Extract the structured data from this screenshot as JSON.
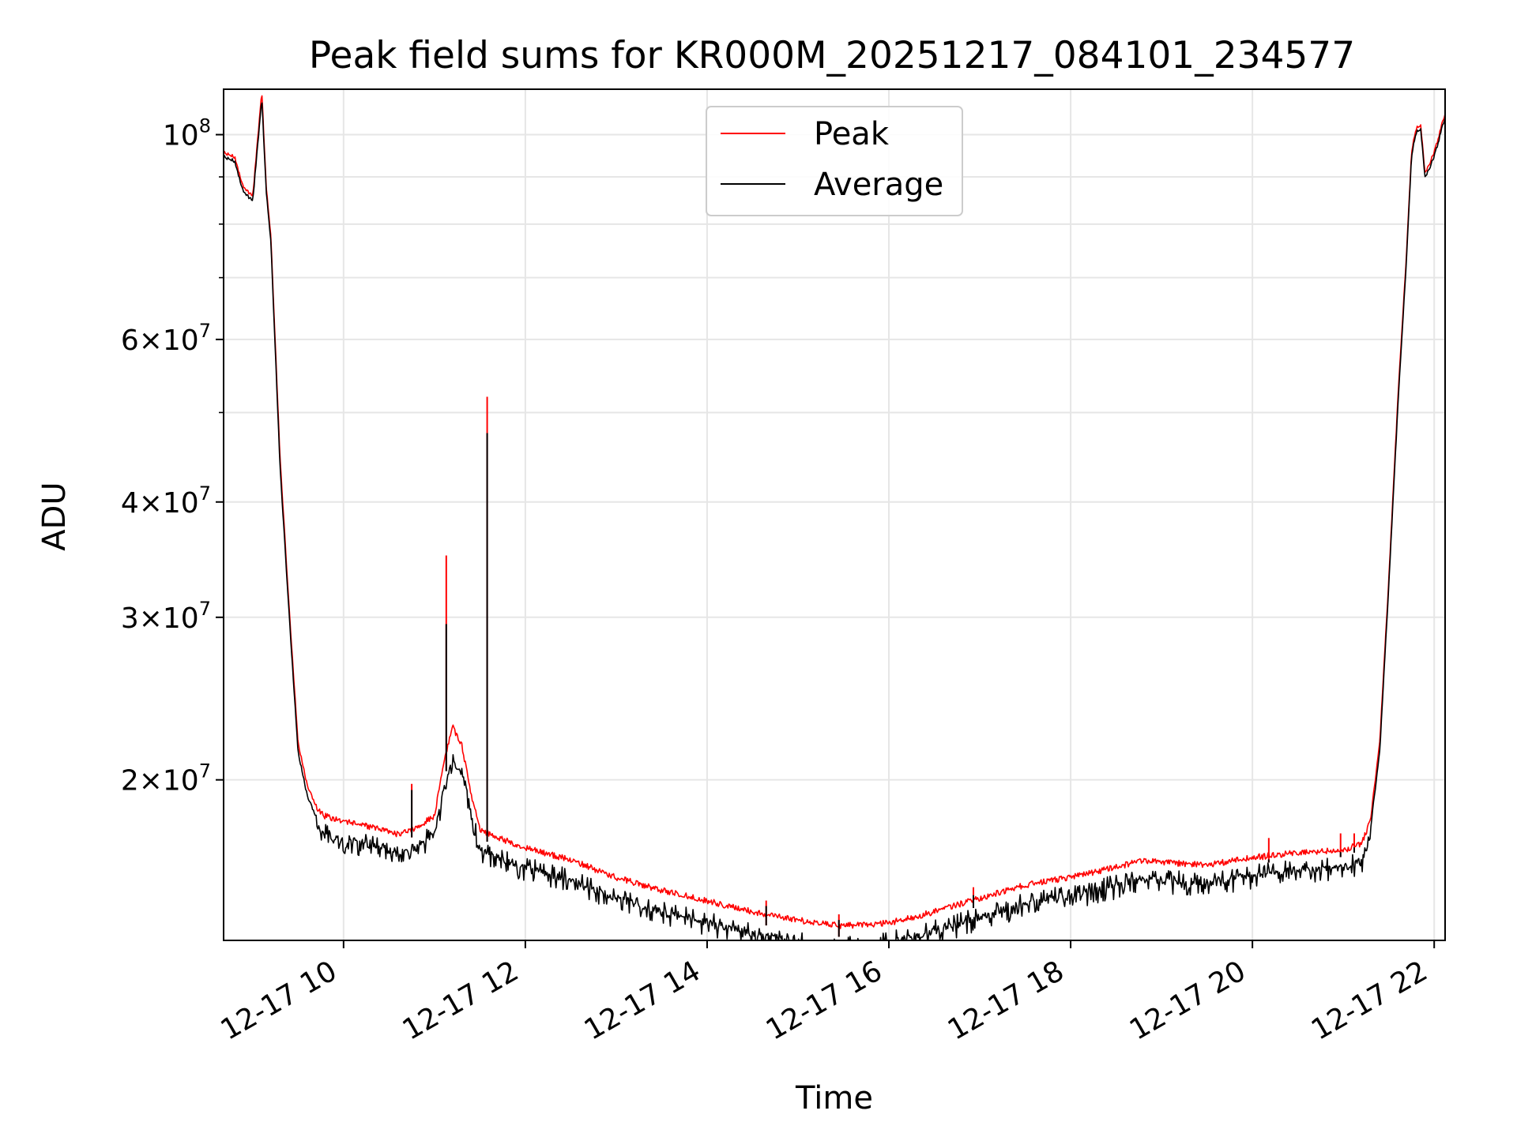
{
  "colors": {
    "peak": "#ff0000",
    "average": "#000000",
    "grid": "#e6e6e6",
    "axes": "#000000",
    "background": "#ffffff"
  },
  "chart_data": {
    "type": "line",
    "title": "Peak field sums for KR000M_20251217_084101_234577",
    "xlabel": "Time",
    "ylabel": "ADU",
    "yscale": "log",
    "grid": true,
    "legend_position": "upper center",
    "xlim": [
      8.68,
      22.12
    ],
    "ylim": [
      13400000,
      112000000
    ],
    "x_unit": "hours on 2025-12-17",
    "x_ticks": [
      {
        "value": 10,
        "label": "12-17 10"
      },
      {
        "value": 12,
        "label": "12-17 12"
      },
      {
        "value": 14,
        "label": "12-17 14"
      },
      {
        "value": 16,
        "label": "12-17 16"
      },
      {
        "value": 18,
        "label": "12-17 18"
      },
      {
        "value": 20,
        "label": "12-17 20"
      },
      {
        "value": 22,
        "label": "12-17 22"
      }
    ],
    "y_ticks": [
      {
        "value": 100000000,
        "mantissa": "",
        "base": "10",
        "exponent": "8"
      },
      {
        "value": 60000000,
        "mantissa": "6×",
        "base": "10",
        "exponent": "7"
      },
      {
        "value": 40000000,
        "mantissa": "4×",
        "base": "10",
        "exponent": "7"
      },
      {
        "value": 30000000,
        "mantissa": "3×",
        "base": "10",
        "exponent": "7"
      },
      {
        "value": 20000000,
        "mantissa": "2×",
        "base": "10",
        "exponent": "7"
      }
    ],
    "y_minor_ticks": [
      90000000,
      80000000,
      70000000,
      50000000
    ],
    "legend": [
      {
        "name": "Peak",
        "color": "#ff0000"
      },
      {
        "name": "Average",
        "color": "#000000"
      }
    ],
    "series": [
      {
        "name": "Peak",
        "color": "#ff0000",
        "x": [
          8.68,
          8.8,
          8.9,
          9.0,
          9.1,
          9.15,
          9.2,
          9.3,
          9.4,
          9.5,
          9.6,
          9.7,
          9.8,
          10.0,
          10.3,
          10.6,
          10.8,
          11.0,
          11.1,
          11.2,
          11.3,
          11.4,
          11.5,
          11.6,
          11.8,
          12.0,
          12.5,
          13.0,
          13.5,
          14.0,
          14.5,
          15.0,
          15.5,
          16.0,
          16.5,
          17.0,
          17.5,
          18.0,
          18.5,
          18.8,
          19.0,
          19.5,
          20.0,
          20.5,
          21.0,
          21.2,
          21.3,
          21.4,
          21.5,
          21.6,
          21.7,
          21.75,
          21.8,
          21.85,
          21.9,
          22.0,
          22.12
        ],
        "y": [
          96000000,
          95000000,
          88000000,
          86000000,
          112000000,
          88000000,
          78000000,
          45000000,
          31000000,
          22000000,
          19800000,
          18800000,
          18400000,
          18200000,
          17900000,
          17600000,
          17900000,
          18400000,
          21000000,
          23000000,
          22000000,
          19500000,
          17800000,
          17600000,
          17300000,
          17000000,
          16500000,
          15800000,
          15300000,
          14900000,
          14500000,
          14200000,
          14000000,
          14100000,
          14500000,
          15000000,
          15500000,
          15800000,
          16200000,
          16500000,
          16400000,
          16300000,
          16600000,
          16800000,
          16900000,
          17200000,
          18200000,
          22000000,
          33000000,
          52000000,
          76000000,
          96000000,
          102000000,
          103000000,
          91000000,
          96000000,
          106000000
        ]
      },
      {
        "name": "Average",
        "color": "#000000",
        "x": [
          8.68,
          8.8,
          8.9,
          9.0,
          9.1,
          9.15,
          9.2,
          9.3,
          9.4,
          9.5,
          9.6,
          9.7,
          9.8,
          10.0,
          10.3,
          10.6,
          10.8,
          11.0,
          11.1,
          11.2,
          11.3,
          11.4,
          11.5,
          11.6,
          11.8,
          12.0,
          12.5,
          13.0,
          13.5,
          14.0,
          14.5,
          15.0,
          15.5,
          16.0,
          16.5,
          17.0,
          17.5,
          18.0,
          18.5,
          18.8,
          19.0,
          19.5,
          20.0,
          20.5,
          21.0,
          21.2,
          21.3,
          21.4,
          21.5,
          21.6,
          21.7,
          21.75,
          21.8,
          21.85,
          21.9,
          22.0,
          22.12
        ],
        "y": [
          95000000,
          94000000,
          87000000,
          85000000,
          110000000,
          87000000,
          77000000,
          44000000,
          30500000,
          21500000,
          19300000,
          18300000,
          17900000,
          17700000,
          17400000,
          17100000,
          17400000,
          17900000,
          20000000,
          21500000,
          21000000,
          19000000,
          17300000,
          17100000,
          16800000,
          16500000,
          16000000,
          15300000,
          14800000,
          14400000,
          14000000,
          13700000,
          13500000,
          13700000,
          14100000,
          14600000,
          15100000,
          15400000,
          15800000,
          16100000,
          16000000,
          15900000,
          16200000,
          16400000,
          16500000,
          16800000,
          17800000,
          21500000,
          32500000,
          51000000,
          75000000,
          95000000,
          101000000,
          102000000,
          90000000,
          95000000,
          105000000
        ]
      }
    ],
    "spikes": [
      {
        "x": 10.75,
        "peak": 19800000,
        "average": 19500000
      },
      {
        "x": 11.13,
        "peak": 35000000,
        "average": 29500000
      },
      {
        "x": 11.58,
        "peak": 52000000,
        "average": 47500000
      },
      {
        "x": 14.65,
        "peak": 14800000,
        "average": 14600000
      },
      {
        "x": 15.45,
        "peak": 14300000,
        "average": 14100000
      },
      {
        "x": 16.93,
        "peak": 15300000,
        "average": 15000000
      },
      {
        "x": 20.18,
        "peak": 17300000,
        "average": 16400000
      },
      {
        "x": 20.97,
        "peak": 17500000,
        "average": 16700000
      },
      {
        "x": 21.12,
        "peak": 17500000,
        "average": 16900000
      }
    ]
  }
}
